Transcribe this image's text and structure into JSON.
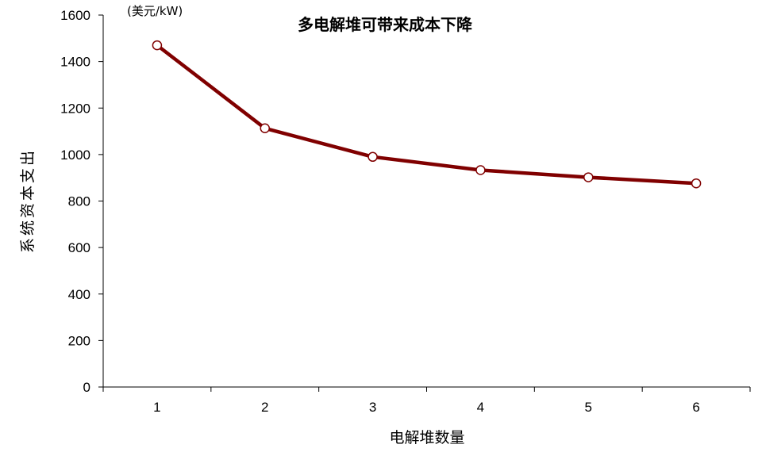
{
  "chart_data": {
    "type": "line",
    "title": "多电解堆可带来成本下降",
    "unit_label": "(美元/kW)",
    "xlabel": "电解堆数量",
    "ylabel": "系统资本支出",
    "categories": [
      "1",
      "2",
      "3",
      "4",
      "5",
      "6"
    ],
    "ylim": [
      0,
      1600
    ],
    "yticks": [
      "0",
      "200",
      "400",
      "600",
      "800",
      "1000",
      "1200",
      "1400",
      "1600"
    ],
    "series": [
      {
        "values": [
          1470,
          1113,
          990,
          933,
          902,
          876
        ]
      }
    ],
    "grid": false,
    "legend": "none",
    "line_color": "#800000",
    "marker_fill": "#ffffff",
    "marker_stroke": "#800000"
  }
}
